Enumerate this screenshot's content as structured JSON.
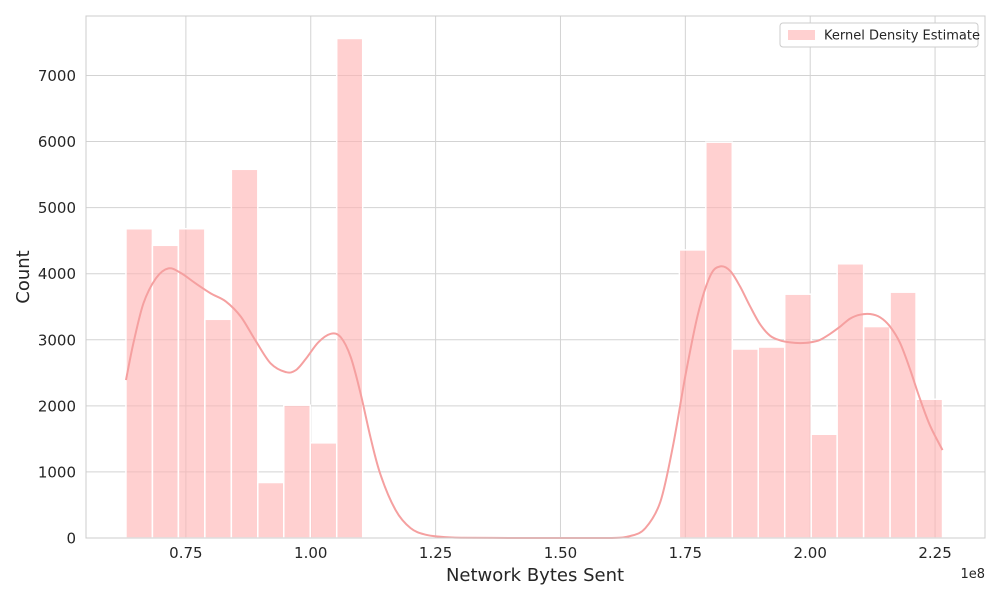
{
  "chart_data": {
    "type": "bar",
    "subtype": "histogram-with-kde",
    "title": "",
    "xlabel": "Network Bytes Sent",
    "ylabel": "Count",
    "x_offset_label": "1e8",
    "x_scale": 100000000,
    "xlim": [
      55000000,
      235000000
    ],
    "ylim": [
      0,
      7900
    ],
    "x_ticks": [
      75000000,
      100000000,
      125000000,
      150000000,
      175000000,
      200000000,
      225000000
    ],
    "x_tick_labels": [
      "0.75",
      "1.00",
      "1.25",
      "1.50",
      "1.75",
      "2.00",
      "2.25"
    ],
    "y_ticks": [
      0,
      1000,
      2000,
      3000,
      4000,
      5000,
      6000,
      7000
    ],
    "y_tick_labels": [
      "0",
      "1000",
      "2000",
      "3000",
      "4000",
      "5000",
      "6000",
      "7000"
    ],
    "grid": true,
    "legend_position": "top-right",
    "legend": [
      "Kernel Density Estimate"
    ],
    "colors": {
      "bar": "#ffb3b3",
      "kde": "#f5a0a0",
      "grid": "#d3d3d3",
      "frame": "#cccccc"
    },
    "bins": [
      {
        "x0": 63000000,
        "x1": 68300000,
        "count": 4680
      },
      {
        "x0": 68300000,
        "x1": 73500000,
        "count": 4430
      },
      {
        "x0": 73500000,
        "x1": 78800000,
        "count": 4680
      },
      {
        "x0": 78800000,
        "x1": 84100000,
        "count": 3310
      },
      {
        "x0": 84100000,
        "x1": 89400000,
        "count": 5580
      },
      {
        "x0": 89400000,
        "x1": 94600000,
        "count": 840
      },
      {
        "x0": 94600000,
        "x1": 99900000,
        "count": 2010
      },
      {
        "x0": 99900000,
        "x1": 105200000,
        "count": 1440
      },
      {
        "x0": 105200000,
        "x1": 110400000,
        "count": 7560
      },
      {
        "x0": 173800000,
        "x1": 179100000,
        "count": 4360
      },
      {
        "x0": 179100000,
        "x1": 184400000,
        "count": 5990
      },
      {
        "x0": 184400000,
        "x1": 189600000,
        "count": 2860
      },
      {
        "x0": 189600000,
        "x1": 194900000,
        "count": 2890
      },
      {
        "x0": 194900000,
        "x1": 200200000,
        "count": 3690
      },
      {
        "x0": 200200000,
        "x1": 205400000,
        "count": 1570
      },
      {
        "x0": 205400000,
        "x1": 210700000,
        "count": 4150
      },
      {
        "x0": 210700000,
        "x1": 216000000,
        "count": 3200
      },
      {
        "x0": 216000000,
        "x1": 221200000,
        "count": 3720
      },
      {
        "x0": 221200000,
        "x1": 226500000,
        "count": 2100
      }
    ],
    "kde": {
      "x": [
        63000000,
        64500000,
        66500000,
        69000000,
        71500000,
        74000000,
        77000000,
        80000000,
        83000000,
        86000000,
        89000000,
        92000000,
        95000000,
        97000000,
        99000000,
        101500000,
        104000000,
        106000000,
        108000000,
        110000000,
        112000000,
        114000000,
        117000000,
        120000000,
        123000000,
        126000000,
        130000000,
        140000000,
        150000000,
        160000000,
        164000000,
        167000000,
        170000000,
        172500000,
        175000000,
        177500000,
        180000000,
        182000000,
        184000000,
        186000000,
        188000000,
        190000000,
        192000000,
        194000000,
        196000000,
        198000000,
        200000000,
        202000000,
        204000000,
        206000000,
        208000000,
        210000000,
        212000000,
        214000000,
        216000000,
        218000000,
        220000000,
        222000000,
        224000000,
        226500000
      ],
      "y": [
        2390,
        2950,
        3550,
        3930,
        4080,
        4010,
        3850,
        3700,
        3580,
        3350,
        2980,
        2640,
        2510,
        2540,
        2710,
        2960,
        3090,
        3040,
        2740,
        2180,
        1510,
        950,
        420,
        150,
        50,
        20,
        5,
        0,
        0,
        0,
        30,
        150,
        550,
        1380,
        2450,
        3380,
        3970,
        4110,
        4040,
        3800,
        3500,
        3230,
        3060,
        2990,
        2960,
        2950,
        2960,
        3000,
        3090,
        3200,
        3320,
        3380,
        3390,
        3340,
        3200,
        2950,
        2550,
        2100,
        1700,
        1330
      ]
    }
  }
}
